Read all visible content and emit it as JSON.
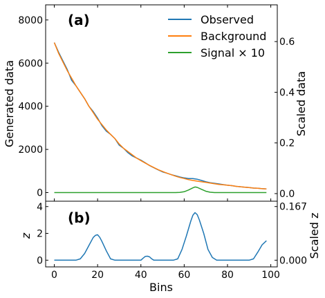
{
  "chart_data": [
    {
      "type": "line",
      "panel_label": "(a)",
      "xlim": [
        -4,
        103
      ],
      "ylabel": "Generated data",
      "ylim": [
        -400,
        8700
      ],
      "yticks": [
        0,
        2000,
        4000,
        6000,
        8000
      ],
      "ylabel_right": "Scaled data",
      "ylim_right": [
        -0.03,
        0.745
      ],
      "yticks_right": [
        0.0,
        0.2,
        0.4,
        0.6
      ],
      "yticks_right_labels": [
        "0.0",
        "0.2",
        "0.4",
        "0.6"
      ],
      "legend_position": "top-right",
      "series": [
        {
          "name": "Observed",
          "color": "#1f77b4",
          "x": [
            0,
            2,
            4,
            6,
            8,
            10,
            12,
            14,
            16,
            18,
            20,
            22,
            24,
            26,
            28,
            30,
            32,
            34,
            36,
            38,
            40,
            42,
            44,
            46,
            48,
            50,
            52,
            54,
            56,
            58,
            60,
            62,
            64,
            66,
            68,
            70,
            72,
            74,
            76,
            78,
            80,
            82,
            84,
            86,
            88,
            90,
            92,
            94,
            96,
            98
          ],
          "values": [
            6950,
            6500,
            6100,
            5700,
            5200,
            4950,
            4650,
            4350,
            4000,
            3750,
            3450,
            3100,
            2850,
            2700,
            2500,
            2200,
            2050,
            1850,
            1700,
            1600,
            1500,
            1380,
            1250,
            1150,
            1050,
            960,
            900,
            830,
            780,
            720,
            680,
            650,
            650,
            620,
            560,
            500,
            460,
            430,
            400,
            370,
            340,
            320,
            290,
            270,
            250,
            230,
            210,
            200,
            180,
            170
          ]
        },
        {
          "name": "Background",
          "color": "#ff7f0e",
          "x": [
            0,
            2,
            4,
            6,
            8,
            10,
            12,
            14,
            16,
            18,
            20,
            22,
            24,
            26,
            28,
            30,
            32,
            34,
            36,
            38,
            40,
            42,
            44,
            46,
            48,
            50,
            52,
            54,
            56,
            58,
            60,
            62,
            64,
            66,
            68,
            70,
            72,
            74,
            76,
            78,
            80,
            82,
            84,
            86,
            88,
            90,
            92,
            94,
            96,
            98
          ],
          "values": [
            6950,
            6450,
            6050,
            5650,
            5300,
            4950,
            4650,
            4350,
            4000,
            3700,
            3400,
            3150,
            2900,
            2700,
            2500,
            2250,
            2050,
            1900,
            1750,
            1600,
            1480,
            1370,
            1260,
            1160,
            1060,
            980,
            900,
            830,
            760,
            700,
            650,
            600,
            560,
            530,
            500,
            470,
            440,
            410,
            380,
            360,
            340,
            320,
            290,
            270,
            250,
            230,
            210,
            200,
            180,
            170
          ]
        },
        {
          "name": "Signal × 10",
          "color": "#2ca02c",
          "x": [
            0,
            10,
            20,
            30,
            40,
            50,
            56,
            58,
            60,
            62,
            64,
            65,
            66,
            68,
            70,
            72,
            74,
            80,
            90,
            98
          ],
          "values": [
            0,
            0,
            0,
            0,
            0,
            0,
            0,
            10,
            40,
            120,
            220,
            260,
            240,
            150,
            60,
            15,
            0,
            0,
            0,
            0
          ]
        }
      ]
    },
    {
      "type": "line",
      "panel_label": "(b)",
      "xlabel": "Bins",
      "xlim": [
        -4,
        103
      ],
      "xticks": [
        0,
        20,
        40,
        60,
        80,
        100
      ],
      "ylabel": "z",
      "ylim": [
        -0.5,
        4.4
      ],
      "yticks": [
        0,
        2,
        4
      ],
      "ylabel_right": "Scaled z",
      "ylim_right": [
        -0.0208,
        0.1836
      ],
      "yticks_right": [
        0.0,
        0.167
      ],
      "yticks_right_labels": [
        "0.000",
        "0.167"
      ],
      "series": [
        {
          "color": "#1f77b4",
          "x": [
            0,
            5,
            10,
            12,
            14,
            16,
            18,
            19,
            20,
            21,
            22,
            24,
            26,
            28,
            30,
            35,
            40,
            41,
            42,
            43,
            44,
            45,
            46,
            50,
            55,
            57,
            59,
            61,
            63,
            64,
            65,
            66,
            67,
            69,
            71,
            73,
            75,
            80,
            85,
            90,
            92,
            94,
            96,
            98
          ],
          "values": [
            0,
            0,
            0,
            0.1,
            0.5,
            1.1,
            1.7,
            1.85,
            1.9,
            1.7,
            1.4,
            0.7,
            0.1,
            0,
            0,
            0,
            0,
            0.15,
            0.28,
            0.3,
            0.25,
            0.1,
            0,
            0,
            0,
            0.1,
            0.8,
            1.8,
            2.9,
            3.35,
            3.55,
            3.4,
            3.0,
            2.0,
            0.8,
            0.2,
            0,
            0,
            0,
            0,
            0.1,
            0.6,
            1.15,
            1.45
          ]
        }
      ]
    }
  ]
}
